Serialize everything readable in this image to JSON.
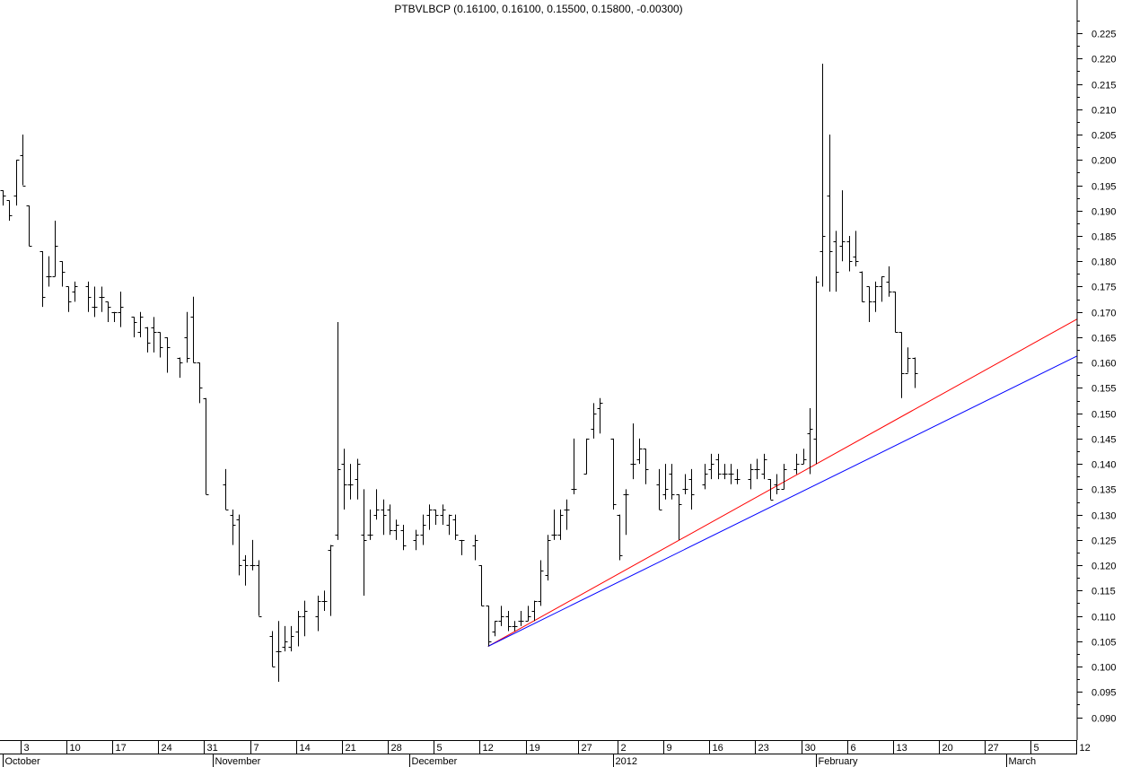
{
  "chart_data": {
    "type": "ohlc",
    "title": "PTBVLBCP (0.16100, 0.16100, 0.15500, 0.15800, -0.00300)",
    "y_ticks": [
      "0.090",
      "0.095",
      "0.100",
      "0.105",
      "0.110",
      "0.115",
      "0.120",
      "0.125",
      "0.130",
      "0.135",
      "0.140",
      "0.145",
      "0.150",
      "0.155",
      "0.160",
      "0.165",
      "0.170",
      "0.175",
      "0.180",
      "0.185",
      "0.190",
      "0.195",
      "0.200",
      "0.205",
      "0.210",
      "0.215",
      "0.220",
      "0.225"
    ],
    "ylim": [
      0.0855,
      0.2305
    ],
    "x_ticks": [
      {
        "label": "3",
        "day": 3
      },
      {
        "label": "10",
        "day": 10
      },
      {
        "label": "17",
        "day": 17
      },
      {
        "label": "24",
        "day": 24
      },
      {
        "label": "31",
        "day": 31
      },
      {
        "label": "7",
        "day": 38
      },
      {
        "label": "14",
        "day": 45
      },
      {
        "label": "21",
        "day": 52
      },
      {
        "label": "28",
        "day": 59
      },
      {
        "label": "5",
        "day": 66
      },
      {
        "label": "12",
        "day": 73
      },
      {
        "label": "19",
        "day": 80
      },
      {
        "label": "27",
        "day": 88
      },
      {
        "label": "2",
        "day": 94
      },
      {
        "label": "9",
        "day": 101
      },
      {
        "label": "16",
        "day": 108
      },
      {
        "label": "23",
        "day": 115
      },
      {
        "label": "30",
        "day": 122
      },
      {
        "label": "6",
        "day": 129
      },
      {
        "label": "13",
        "day": 136
      },
      {
        "label": "20",
        "day": 143
      },
      {
        "label": "27",
        "day": 150
      },
      {
        "label": "5",
        "day": 157
      },
      {
        "label": "12",
        "day": 164
      }
    ],
    "months": [
      {
        "label": "October",
        "day": 0
      },
      {
        "label": "November",
        "day": 32
      },
      {
        "label": "December",
        "day": 62
      },
      {
        "label": "2012",
        "day": 93
      },
      {
        "label": "February",
        "day": 124
      },
      {
        "label": "March",
        "day": 153
      }
    ],
    "x_unit": "days since 2011-09-30 (trading days shown)",
    "xlim": [
      -0.4,
      163.8
    ],
    "ohlc": [
      [
        0,
        0.194,
        0.194,
        0.191,
        0.193
      ],
      [
        1,
        0.192,
        0.192,
        0.188,
        0.189
      ],
      [
        2,
        0.193,
        0.2,
        0.191,
        0.2
      ],
      [
        3,
        0.201,
        0.205,
        0.195,
        0.195
      ],
      [
        4,
        0.191,
        0.191,
        0.183,
        0.183
      ],
      [
        6,
        0.182,
        0.182,
        0.171,
        0.173
      ],
      [
        7,
        0.177,
        0.181,
        0.175,
        0.177
      ],
      [
        8,
        0.177,
        0.188,
        0.177,
        0.183
      ],
      [
        9,
        0.18,
        0.18,
        0.175,
        0.178
      ],
      [
        10,
        0.175,
        0.175,
        0.17,
        0.172
      ],
      [
        11,
        0.174,
        0.176,
        0.172,
        0.175
      ],
      [
        13,
        0.175,
        0.176,
        0.17,
        0.173
      ],
      [
        14,
        0.171,
        0.175,
        0.169,
        0.171
      ],
      [
        15,
        0.173,
        0.175,
        0.17,
        0.173
      ],
      [
        16,
        0.172,
        0.172,
        0.168,
        0.171
      ],
      [
        17,
        0.17,
        0.17,
        0.168,
        0.17
      ],
      [
        18,
        0.17,
        0.174,
        0.167,
        0.171
      ],
      [
        20,
        0.169,
        0.169,
        0.165,
        0.168
      ],
      [
        21,
        0.166,
        0.17,
        0.165,
        0.169
      ],
      [
        22,
        0.167,
        0.167,
        0.162,
        0.164
      ],
      [
        23,
        0.167,
        0.169,
        0.162,
        0.166
      ],
      [
        24,
        0.166,
        0.166,
        0.161,
        0.163
      ],
      [
        25,
        0.165,
        0.165,
        0.158,
        0.163
      ],
      [
        27,
        0.161,
        0.161,
        0.157,
        0.16
      ],
      [
        28,
        0.165,
        0.17,
        0.16,
        0.161
      ],
      [
        29,
        0.169,
        0.173,
        0.16,
        0.16
      ],
      [
        30,
        0.16,
        0.16,
        0.152,
        0.155
      ],
      [
        31,
        0.153,
        0.153,
        0.134,
        0.134
      ],
      [
        34,
        0.136,
        0.139,
        0.131,
        0.131
      ],
      [
        35,
        0.13,
        0.131,
        0.124,
        0.128
      ],
      [
        36,
        0.129,
        0.13,
        0.118,
        0.12
      ],
      [
        37,
        0.121,
        0.122,
        0.116,
        0.12
      ],
      [
        38,
        0.12,
        0.125,
        0.119,
        0.12
      ],
      [
        39,
        0.12,
        0.121,
        0.11,
        0.11
      ],
      [
        41,
        0.106,
        0.107,
        0.1,
        0.1
      ],
      [
        42,
        0.103,
        0.109,
        0.097,
        0.103
      ],
      [
        43,
        0.104,
        0.108,
        0.103,
        0.105
      ],
      [
        44,
        0.104,
        0.108,
        0.103,
        0.106
      ],
      [
        45,
        0.107,
        0.111,
        0.104,
        0.11
      ],
      [
        46,
        0.11,
        0.113,
        0.106,
        0.111
      ],
      [
        48,
        0.11,
        0.114,
        0.107,
        0.113
      ],
      [
        49,
        0.113,
        0.115,
        0.111,
        0.113
      ],
      [
        50,
        0.123,
        0.124,
        0.11,
        0.124
      ],
      [
        51,
        0.126,
        0.168,
        0.125,
        0.139
      ],
      [
        52,
        0.14,
        0.143,
        0.131,
        0.136
      ],
      [
        53,
        0.136,
        0.14,
        0.133,
        0.136
      ],
      [
        54,
        0.137,
        0.141,
        0.133,
        0.14
      ],
      [
        55,
        0.126,
        0.135,
        0.114,
        0.125
      ],
      [
        56,
        0.126,
        0.131,
        0.125,
        0.126
      ],
      [
        57,
        0.13,
        0.135,
        0.129,
        0.131
      ],
      [
        58,
        0.131,
        0.133,
        0.126,
        0.13
      ],
      [
        59,
        0.131,
        0.132,
        0.126,
        0.127
      ],
      [
        60,
        0.127,
        0.129,
        0.125,
        0.128
      ],
      [
        61,
        0.127,
        0.128,
        0.123,
        0.124
      ],
      [
        63,
        0.125,
        0.127,
        0.123,
        0.126
      ],
      [
        64,
        0.126,
        0.13,
        0.124,
        0.128
      ],
      [
        65,
        0.13,
        0.132,
        0.127,
        0.131
      ],
      [
        66,
        0.131,
        0.131,
        0.128,
        0.13
      ],
      [
        67,
        0.13,
        0.132,
        0.128,
        0.131
      ],
      [
        68,
        0.128,
        0.13,
        0.126,
        0.13
      ],
      [
        69,
        0.129,
        0.13,
        0.125,
        0.126
      ],
      [
        70,
        0.125,
        0.125,
        0.122,
        0.125
      ],
      [
        72,
        0.124,
        0.126,
        0.121,
        0.125
      ],
      [
        73,
        0.12,
        0.12,
        0.112,
        0.112
      ],
      [
        74,
        0.112,
        0.112,
        0.104,
        0.105
      ],
      [
        75,
        0.107,
        0.109,
        0.106,
        0.109
      ],
      [
        76,
        0.109,
        0.112,
        0.108,
        0.11
      ],
      [
        77,
        0.11,
        0.111,
        0.107,
        0.108
      ],
      [
        78,
        0.108,
        0.109,
        0.107,
        0.108
      ],
      [
        79,
        0.109,
        0.111,
        0.108,
        0.109
      ],
      [
        80,
        0.109,
        0.112,
        0.109,
        0.11
      ],
      [
        81,
        0.111,
        0.113,
        0.109,
        0.113
      ],
      [
        82,
        0.113,
        0.121,
        0.112,
        0.119
      ],
      [
        83,
        0.118,
        0.126,
        0.117,
        0.125
      ],
      [
        84,
        0.126,
        0.131,
        0.125,
        0.126
      ],
      [
        85,
        0.126,
        0.131,
        0.125,
        0.13
      ],
      [
        86,
        0.131,
        0.133,
        0.127,
        0.131
      ],
      [
        87,
        0.135,
        0.145,
        0.134,
        0.135
      ],
      [
        89,
        0.138,
        0.145,
        0.138,
        0.145
      ],
      [
        90,
        0.147,
        0.152,
        0.145,
        0.15
      ],
      [
        91,
        0.151,
        0.153,
        0.146,
        0.152
      ],
      [
        93,
        0.145,
        0.145,
        0.131,
        0.132
      ],
      [
        94,
        0.13,
        0.13,
        0.121,
        0.122
      ],
      [
        95,
        0.134,
        0.135,
        0.126,
        0.134
      ],
      [
        96,
        0.14,
        0.148,
        0.137,
        0.14
      ],
      [
        97,
        0.141,
        0.145,
        0.14,
        0.143
      ],
      [
        98,
        0.143,
        0.143,
        0.136,
        0.139
      ],
      [
        100,
        0.136,
        0.139,
        0.131,
        0.131
      ],
      [
        101,
        0.134,
        0.14,
        0.133,
        0.135
      ],
      [
        102,
        0.138,
        0.14,
        0.133,
        0.134
      ],
      [
        103,
        0.134,
        0.134,
        0.125,
        0.132
      ],
      [
        104,
        0.135,
        0.138,
        0.134,
        0.135
      ],
      [
        105,
        0.137,
        0.139,
        0.131,
        0.134
      ],
      [
        107,
        0.136,
        0.14,
        0.135,
        0.138
      ],
      [
        108,
        0.139,
        0.142,
        0.137,
        0.14
      ],
      [
        109,
        0.141,
        0.142,
        0.137,
        0.138
      ],
      [
        110,
        0.138,
        0.14,
        0.137,
        0.138
      ],
      [
        111,
        0.138,
        0.14,
        0.136,
        0.138
      ],
      [
        112,
        0.137,
        0.139,
        0.136,
        0.137
      ],
      [
        114,
        0.137,
        0.14,
        0.135,
        0.139
      ],
      [
        115,
        0.139,
        0.141,
        0.137,
        0.139
      ],
      [
        116,
        0.138,
        0.142,
        0.137,
        0.141
      ],
      [
        117,
        0.137,
        0.137,
        0.133,
        0.133
      ],
      [
        118,
        0.136,
        0.138,
        0.134,
        0.135
      ],
      [
        119,
        0.135,
        0.14,
        0.135,
        0.139
      ],
      [
        121,
        0.139,
        0.142,
        0.138,
        0.14
      ],
      [
        122,
        0.14,
        0.143,
        0.14,
        0.141
      ],
      [
        123,
        0.146,
        0.151,
        0.138,
        0.147
      ],
      [
        124,
        0.145,
        0.177,
        0.14,
        0.176
      ],
      [
        125,
        0.182,
        0.219,
        0.175,
        0.185
      ],
      [
        126,
        0.193,
        0.205,
        0.174,
        0.182
      ],
      [
        127,
        0.184,
        0.186,
        0.174,
        0.178
      ],
      [
        128,
        0.183,
        0.194,
        0.18,
        0.184
      ],
      [
        129,
        0.184,
        0.185,
        0.178,
        0.18
      ],
      [
        130,
        0.181,
        0.186,
        0.179,
        0.18
      ],
      [
        131,
        0.178,
        0.178,
        0.172,
        0.172
      ],
      [
        132,
        0.175,
        0.175,
        0.168,
        0.172
      ],
      [
        133,
        0.172,
        0.176,
        0.17,
        0.175
      ],
      [
        134,
        0.175,
        0.177,
        0.172,
        0.177
      ],
      [
        135,
        0.176,
        0.179,
        0.173,
        0.174
      ],
      [
        136,
        0.174,
        0.174,
        0.166,
        0.166
      ],
      [
        137,
        0.166,
        0.166,
        0.153,
        0.158
      ],
      [
        138,
        0.158,
        0.163,
        0.158,
        0.161
      ],
      [
        139,
        0.161,
        0.161,
        0.155,
        0.158
      ]
    ],
    "trendlines": [
      {
        "color": "#ff0000",
        "from": [
          74,
          0.104
        ],
        "to": [
          163.8,
          0.1686
        ]
      },
      {
        "color": "#0000ff",
        "from": [
          74,
          0.104
        ],
        "to": [
          163.8,
          0.1613
        ]
      }
    ],
    "bar_color": "#000000",
    "grid": false
  }
}
